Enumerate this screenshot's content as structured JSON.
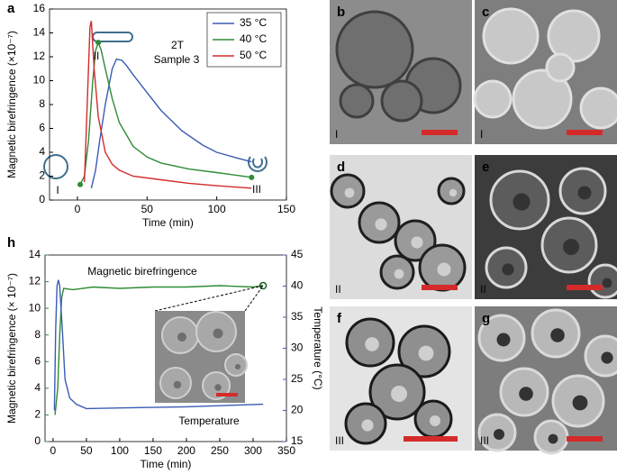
{
  "chart_data": [
    {
      "type": "line",
      "panel": "a",
      "xlabel": "Time (min)",
      "ylabel": "Magnetic birefringence (×10⁻⁷)",
      "xlim": [
        -20,
        150
      ],
      "xticks": [
        0,
        50,
        100,
        150
      ],
      "ylim": [
        0,
        16
      ],
      "yticks": [
        0,
        2,
        4,
        6,
        8,
        10,
        12,
        14,
        16
      ],
      "legend": "upper right",
      "annotations": [
        "2T",
        "Sample 3",
        "I",
        "II",
        "III"
      ],
      "series": [
        {
          "name": "35 °C",
          "color": "#3a5bb5",
          "x": [
            10,
            13,
            16,
            20,
            25,
            28,
            32,
            35,
            40,
            50,
            60,
            75,
            90,
            100,
            115,
            125
          ],
          "values": [
            1.0,
            2.5,
            5,
            8,
            11,
            11.8,
            11.7,
            11.3,
            10.5,
            9,
            7.5,
            5.8,
            4.6,
            4.0,
            3.5,
            3.2
          ]
        },
        {
          "name": "40 °C",
          "color": "#2e8b36",
          "x": [
            2,
            5,
            8,
            11,
            13,
            15,
            17,
            20,
            25,
            30,
            40,
            50,
            60,
            80,
            100,
            125
          ],
          "values": [
            1.3,
            2,
            5,
            10,
            12.5,
            13.2,
            12.6,
            11,
            8.5,
            6.5,
            4.5,
            3.6,
            3.1,
            2.6,
            2.3,
            1.9
          ]
        },
        {
          "name": "50 °C",
          "color": "#d42a2a",
          "x": [
            5,
            7,
            9,
            10,
            12,
            15,
            20,
            25,
            30,
            40,
            60,
            80,
            100,
            125
          ],
          "values": [
            1.5,
            8,
            14.5,
            15,
            11,
            7,
            4,
            3,
            2.5,
            2,
            1.7,
            1.4,
            1.2,
            1.0
          ]
        }
      ]
    },
    {
      "type": "line",
      "panel": "h",
      "xlabel": "Time (min)",
      "ylabel": "Magnetic birefringence (× 10⁻⁷)",
      "y2label": "Temperature (°C)",
      "xlim": [
        -12,
        350
      ],
      "xticks": [
        0,
        50,
        100,
        150,
        200,
        250,
        300,
        350
      ],
      "ylim": [
        0,
        14
      ],
      "yticks": [
        0,
        2,
        4,
        6,
        8,
        10,
        12,
        14
      ],
      "y2lim": [
        15,
        45
      ],
      "y2ticks": [
        15,
        20,
        25,
        30,
        35,
        40,
        45
      ],
      "annotations": [
        "Magnetic birefringence",
        "Temperature"
      ],
      "series": [
        {
          "name": "Magnetic birefringence",
          "color": "#2e8b36",
          "x": [
            3,
            7,
            10,
            13,
            16,
            30,
            60,
            100,
            150,
            200,
            250,
            300,
            315
          ],
          "values": [
            2,
            4,
            8,
            10.8,
            11.5,
            11.4,
            11.6,
            11.5,
            11.6,
            11.6,
            11.7,
            11.6,
            11.7
          ]
        },
        {
          "name": "Temperature",
          "color": "#3a5bb5",
          "axis": "y2",
          "x": [
            2,
            4,
            6,
            8,
            10,
            14,
            18,
            25,
            35,
            50,
            100,
            200,
            315
          ],
          "values": [
            20,
            33,
            40,
            41,
            40,
            33,
            25,
            22,
            21,
            20.3,
            20.4,
            20.6,
            21
          ]
        }
      ]
    }
  ],
  "panels": [
    {
      "letter": "b",
      "stage": "I"
    },
    {
      "letter": "c",
      "stage": "I"
    },
    {
      "letter": "d",
      "stage": "II"
    },
    {
      "letter": "e",
      "stage": "II"
    },
    {
      "letter": "f",
      "stage": "III"
    },
    {
      "letter": "g",
      "stage": "III"
    }
  ]
}
